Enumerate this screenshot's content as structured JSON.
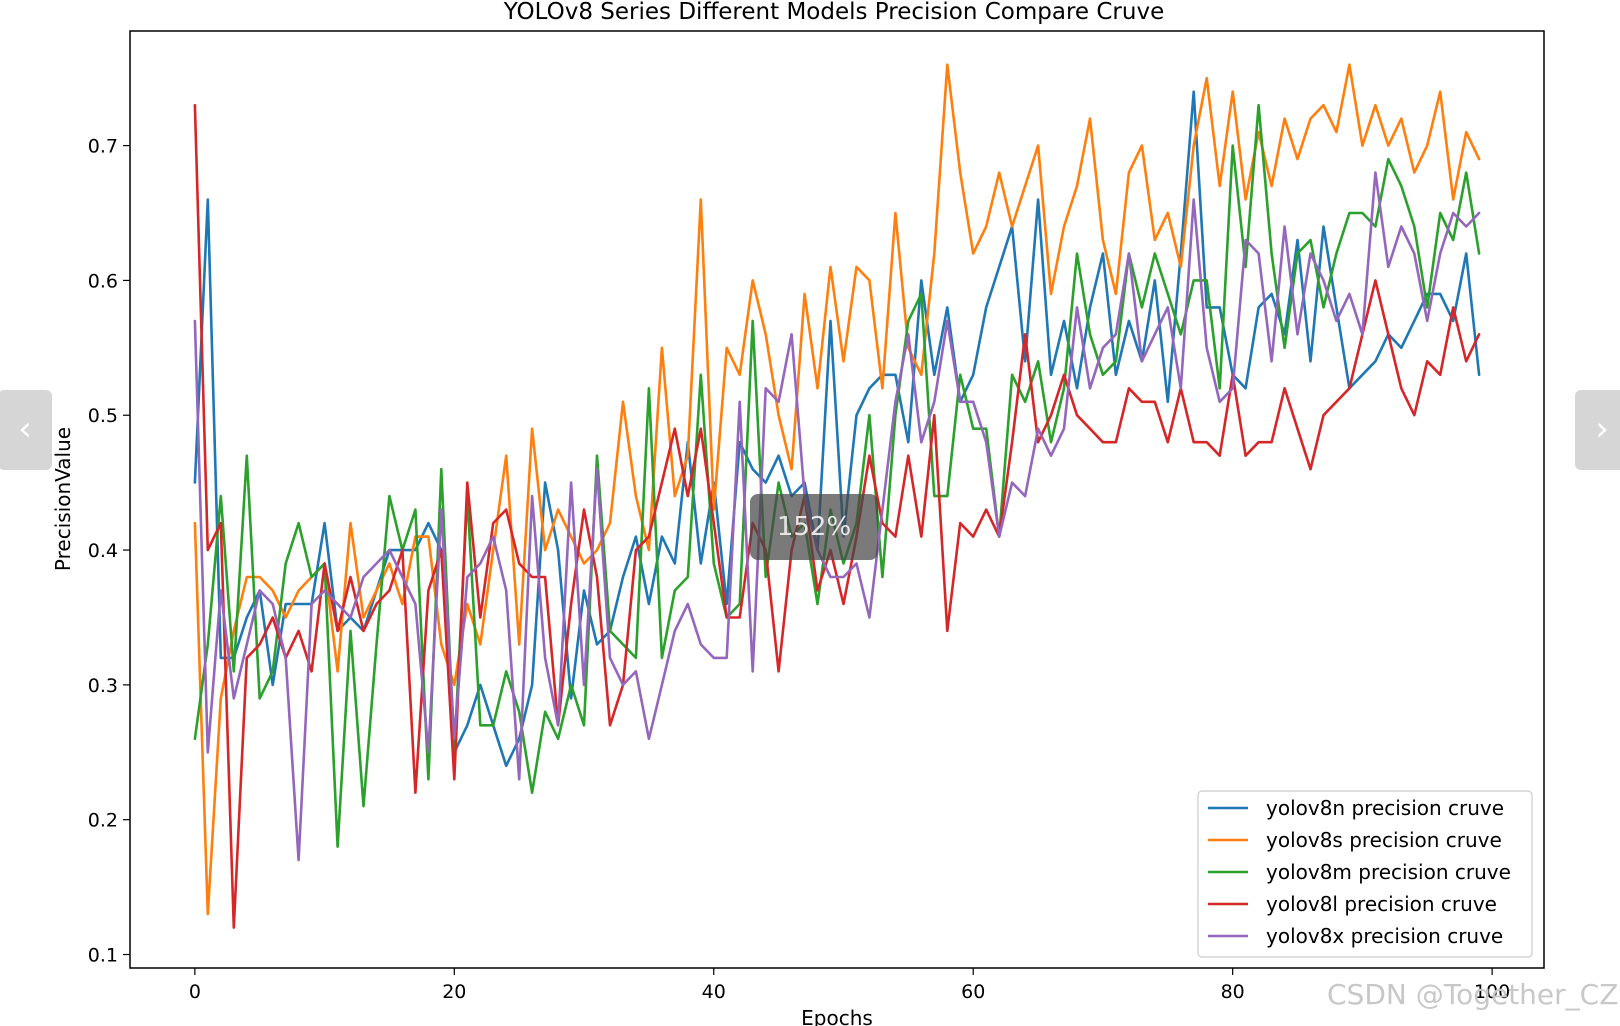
{
  "chart_data": {
    "type": "line",
    "title": "YOLOv8 Series Different Models Precision Compare Cruve",
    "xlabel": "Epochs",
    "ylabel": "PrecisionValue",
    "xlim": [
      -5,
      104
    ],
    "ylim": [
      0.09,
      0.785
    ],
    "xticks": [
      0,
      20,
      40,
      60,
      80,
      100
    ],
    "yticks": [
      0.1,
      0.2,
      0.3,
      0.4,
      0.5,
      0.6,
      0.7
    ],
    "grid": false,
    "legend_position": "lower-right",
    "x": [
      0,
      1,
      2,
      3,
      4,
      5,
      6,
      7,
      8,
      9,
      10,
      11,
      12,
      13,
      14,
      15,
      16,
      17,
      18,
      19,
      20,
      21,
      22,
      23,
      24,
      25,
      26,
      27,
      28,
      29,
      30,
      31,
      32,
      33,
      34,
      35,
      36,
      37,
      38,
      39,
      40,
      41,
      42,
      43,
      44,
      45,
      46,
      47,
      48,
      49,
      50,
      51,
      52,
      53,
      54,
      55,
      56,
      57,
      58,
      59,
      60,
      61,
      62,
      63,
      64,
      65,
      66,
      67,
      68,
      69,
      70,
      71,
      72,
      73,
      74,
      75,
      76,
      77,
      78,
      79,
      80,
      81,
      82,
      83,
      84,
      85,
      86,
      87,
      88,
      89,
      90,
      91,
      92,
      93,
      94,
      95,
      96,
      97,
      98,
      99
    ],
    "series": [
      {
        "name": "yolov8n precision cruve",
        "color": "#1f77b4",
        "values": [
          0.45,
          0.66,
          0.32,
          0.32,
          0.35,
          0.37,
          0.3,
          0.36,
          0.36,
          0.36,
          0.42,
          0.34,
          0.35,
          0.34,
          0.37,
          0.4,
          0.4,
          0.4,
          0.42,
          0.4,
          0.25,
          0.27,
          0.3,
          0.27,
          0.24,
          0.26,
          0.3,
          0.45,
          0.4,
          0.29,
          0.37,
          0.33,
          0.34,
          0.38,
          0.41,
          0.36,
          0.41,
          0.39,
          0.48,
          0.39,
          0.45,
          0.36,
          0.48,
          0.46,
          0.45,
          0.47,
          0.44,
          0.45,
          0.4,
          0.57,
          0.41,
          0.5,
          0.52,
          0.53,
          0.53,
          0.48,
          0.6,
          0.53,
          0.58,
          0.51,
          0.53,
          0.58,
          0.61,
          0.64,
          0.54,
          0.66,
          0.53,
          0.57,
          0.52,
          0.58,
          0.62,
          0.53,
          0.57,
          0.54,
          0.6,
          0.51,
          0.62,
          0.74,
          0.58,
          0.58,
          0.53,
          0.52,
          0.58,
          0.59,
          0.56,
          0.63,
          0.54,
          0.64,
          0.58,
          0.52,
          0.53,
          0.54,
          0.56,
          0.55,
          0.57,
          0.59,
          0.59,
          0.57,
          0.62,
          0.53
        ]
      },
      {
        "name": "yolov8s precision cruve",
        "color": "#ff7f0e",
        "values": [
          0.42,
          0.13,
          0.29,
          0.34,
          0.38,
          0.38,
          0.37,
          0.35,
          0.37,
          0.38,
          0.39,
          0.31,
          0.42,
          0.35,
          0.37,
          0.39,
          0.36,
          0.41,
          0.41,
          0.33,
          0.3,
          0.36,
          0.33,
          0.4,
          0.47,
          0.33,
          0.49,
          0.4,
          0.43,
          0.41,
          0.39,
          0.4,
          0.42,
          0.51,
          0.44,
          0.4,
          0.55,
          0.44,
          0.47,
          0.66,
          0.43,
          0.55,
          0.53,
          0.6,
          0.56,
          0.5,
          0.46,
          0.59,
          0.52,
          0.61,
          0.54,
          0.61,
          0.6,
          0.52,
          0.65,
          0.55,
          0.53,
          0.62,
          0.76,
          0.68,
          0.62,
          0.64,
          0.68,
          0.64,
          0.67,
          0.7,
          0.59,
          0.64,
          0.67,
          0.72,
          0.63,
          0.59,
          0.68,
          0.7,
          0.63,
          0.65,
          0.61,
          0.7,
          0.75,
          0.67,
          0.74,
          0.66,
          0.71,
          0.67,
          0.72,
          0.69,
          0.72,
          0.73,
          0.71,
          0.76,
          0.7,
          0.73,
          0.7,
          0.72,
          0.68,
          0.7,
          0.74,
          0.66,
          0.71,
          0.69
        ]
      },
      {
        "name": "yolov8m precision cruve",
        "color": "#2ca02c",
        "values": [
          0.26,
          0.33,
          0.44,
          0.31,
          0.47,
          0.29,
          0.31,
          0.39,
          0.42,
          0.38,
          0.39,
          0.18,
          0.34,
          0.21,
          0.33,
          0.44,
          0.4,
          0.43,
          0.23,
          0.46,
          0.25,
          0.44,
          0.27,
          0.27,
          0.31,
          0.28,
          0.22,
          0.28,
          0.26,
          0.3,
          0.27,
          0.47,
          0.34,
          0.33,
          0.32,
          0.52,
          0.32,
          0.37,
          0.38,
          0.53,
          0.39,
          0.35,
          0.36,
          0.57,
          0.38,
          0.45,
          0.41,
          0.42,
          0.36,
          0.43,
          0.39,
          0.42,
          0.5,
          0.38,
          0.5,
          0.57,
          0.59,
          0.44,
          0.44,
          0.53,
          0.49,
          0.49,
          0.41,
          0.53,
          0.51,
          0.54,
          0.48,
          0.52,
          0.62,
          0.56,
          0.53,
          0.54,
          0.62,
          0.58,
          0.62,
          0.59,
          0.56,
          0.6,
          0.6,
          0.52,
          0.7,
          0.61,
          0.73,
          0.62,
          0.55,
          0.62,
          0.63,
          0.58,
          0.62,
          0.65,
          0.65,
          0.64,
          0.69,
          0.67,
          0.64,
          0.58,
          0.65,
          0.63,
          0.68,
          0.62
        ]
      },
      {
        "name": "yolov8l precision cruve",
        "color": "#d62728",
        "values": [
          0.73,
          0.4,
          0.42,
          0.12,
          0.32,
          0.33,
          0.35,
          0.32,
          0.34,
          0.31,
          0.39,
          0.34,
          0.38,
          0.34,
          0.36,
          0.37,
          0.4,
          0.22,
          0.37,
          0.4,
          0.23,
          0.45,
          0.35,
          0.42,
          0.43,
          0.39,
          0.38,
          0.38,
          0.27,
          0.36,
          0.43,
          0.38,
          0.27,
          0.3,
          0.4,
          0.41,
          0.45,
          0.49,
          0.44,
          0.49,
          0.42,
          0.35,
          0.35,
          0.42,
          0.4,
          0.31,
          0.4,
          0.44,
          0.37,
          0.4,
          0.36,
          0.41,
          0.47,
          0.42,
          0.41,
          0.47,
          0.41,
          0.5,
          0.34,
          0.42,
          0.41,
          0.43,
          0.41,
          0.48,
          0.56,
          0.48,
          0.5,
          0.53,
          0.5,
          0.49,
          0.48,
          0.48,
          0.52,
          0.51,
          0.51,
          0.48,
          0.52,
          0.48,
          0.48,
          0.47,
          0.53,
          0.47,
          0.48,
          0.48,
          0.52,
          0.49,
          0.46,
          0.5,
          0.51,
          0.52,
          0.56,
          0.6,
          0.56,
          0.52,
          0.5,
          0.54,
          0.53,
          0.58,
          0.54,
          0.56
        ]
      },
      {
        "name": "yolov8x precision cruve",
        "color": "#9467bd",
        "values": [
          0.57,
          0.25,
          0.37,
          0.29,
          0.33,
          0.37,
          0.36,
          0.32,
          0.17,
          0.36,
          0.37,
          0.36,
          0.35,
          0.38,
          0.39,
          0.4,
          0.38,
          0.36,
          0.25,
          0.43,
          0.26,
          0.38,
          0.39,
          0.41,
          0.37,
          0.23,
          0.44,
          0.32,
          0.27,
          0.45,
          0.3,
          0.46,
          0.32,
          0.3,
          0.31,
          0.26,
          0.3,
          0.34,
          0.36,
          0.33,
          0.32,
          0.32,
          0.51,
          0.31,
          0.52,
          0.51,
          0.56,
          0.44,
          0.4,
          0.38,
          0.38,
          0.39,
          0.35,
          0.43,
          0.51,
          0.56,
          0.48,
          0.51,
          0.57,
          0.51,
          0.51,
          0.48,
          0.41,
          0.45,
          0.44,
          0.49,
          0.47,
          0.49,
          0.58,
          0.52,
          0.55,
          0.56,
          0.62,
          0.54,
          0.56,
          0.58,
          0.52,
          0.66,
          0.55,
          0.51,
          0.52,
          0.63,
          0.62,
          0.54,
          0.64,
          0.56,
          0.62,
          0.6,
          0.57,
          0.59,
          0.56,
          0.68,
          0.61,
          0.64,
          0.62,
          0.57,
          0.62,
          0.65,
          0.64,
          0.65
        ]
      }
    ]
  },
  "viewer": {
    "zoom_label": "152%",
    "prev_arrow": "‹",
    "next_arrow": "›",
    "watermark": "CSDN @Together_CZ"
  }
}
